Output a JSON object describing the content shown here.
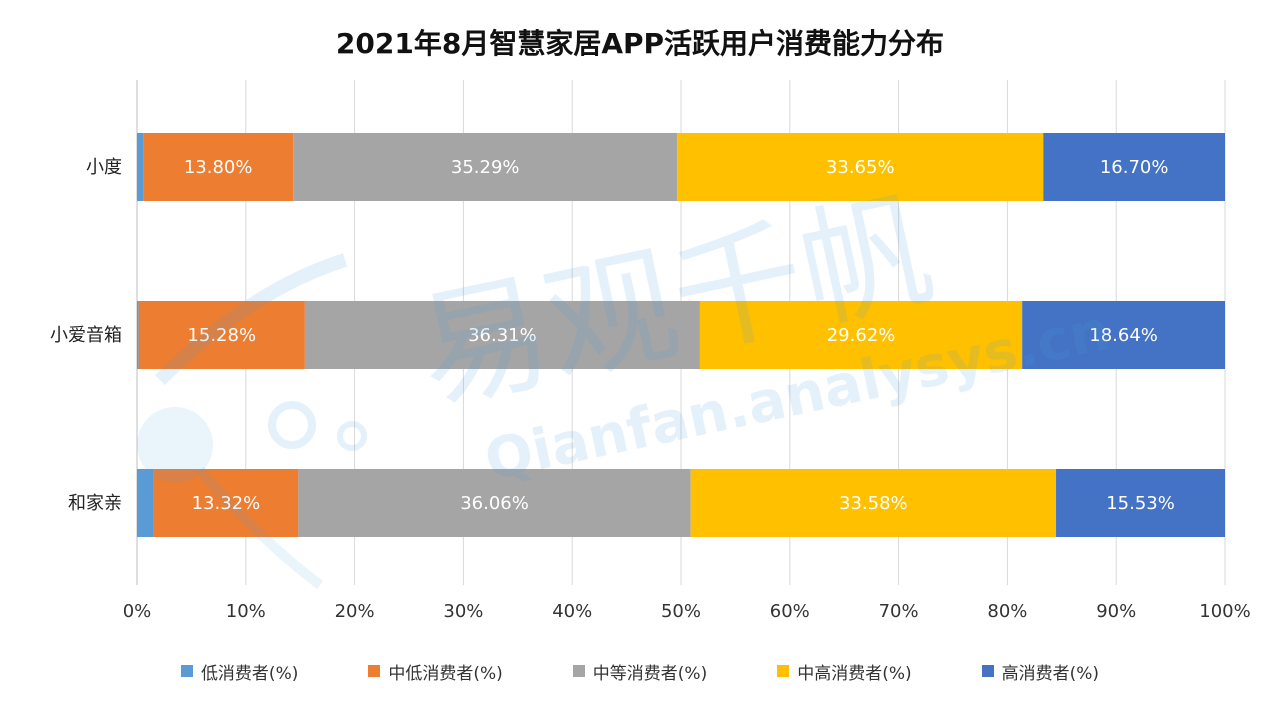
{
  "chart_data": {
    "type": "bar",
    "orientation": "horizontal",
    "stacked": "percent",
    "title": "2021年8月智慧家居APP活跃用户消费能力分布",
    "categories": [
      "小度",
      "小爱音箱",
      "和家亲"
    ],
    "series": [
      {
        "name": "低消费者(%)",
        "color": "#5B9BD5",
        "values": [
          0.56,
          0.15,
          1.51
        ]
      },
      {
        "name": "中低消费者(%)",
        "color": "#ED7D31",
        "values": [
          13.8,
          15.28,
          13.32
        ]
      },
      {
        "name": "中等消费者(%)",
        "color": "#A5A5A5",
        "values": [
          35.29,
          36.31,
          36.06
        ]
      },
      {
        "name": "中高消费者(%)",
        "color": "#FFC000",
        "values": [
          33.65,
          29.62,
          33.58
        ]
      },
      {
        "name": "高消费者(%)",
        "color": "#4472C4",
        "values": [
          16.7,
          18.64,
          15.53
        ]
      }
    ],
    "data_labels": [
      [
        null,
        "13.80%",
        "35.29%",
        "33.65%",
        "16.70%"
      ],
      [
        null,
        "15.28%",
        "36.31%",
        "29.62%",
        "18.64%"
      ],
      [
        null,
        "13.32%",
        "36.06%",
        "33.58%",
        "15.53%"
      ]
    ],
    "x_ticks": [
      "0%",
      "10%",
      "20%",
      "30%",
      "40%",
      "50%",
      "60%",
      "70%",
      "80%",
      "90%",
      "100%"
    ],
    "xlim": [
      0,
      100
    ],
    "grid": true,
    "legend": "bottom"
  },
  "watermark": {
    "cn": "易观千帆",
    "en": "Qianfan.analysys.cn"
  }
}
